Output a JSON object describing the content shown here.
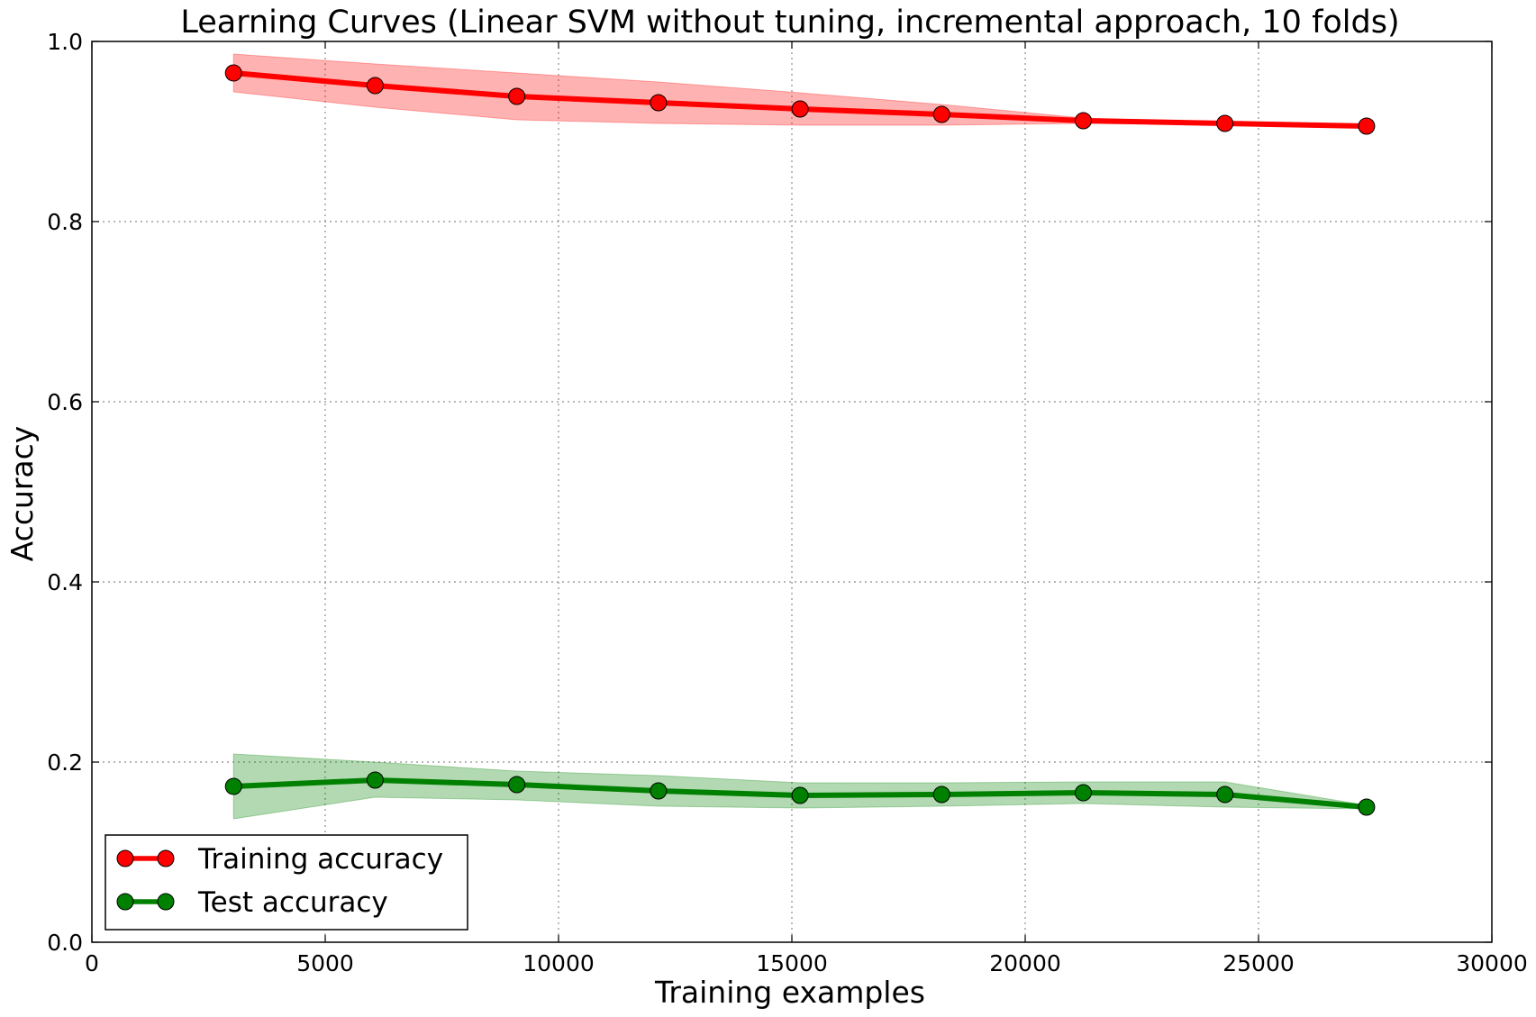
{
  "chart_data": {
    "type": "line",
    "title": "Learning Curves (Linear SVM without tuning, incremental approach, 10 folds)",
    "xlabel": "Training examples",
    "ylabel": "Accuracy",
    "xlim": [
      0,
      30000
    ],
    "ylim": [
      0.0,
      1.0
    ],
    "xticks": [
      0,
      5000,
      10000,
      15000,
      20000,
      25000,
      30000
    ],
    "xtick_labels": [
      "0",
      "5000",
      "10000",
      "15000",
      "20000",
      "25000",
      "30000"
    ],
    "yticks": [
      0.0,
      0.2,
      0.4,
      0.6,
      0.8,
      1.0
    ],
    "ytick_labels": [
      "0.0",
      "0.2",
      "0.4",
      "0.6",
      "0.8",
      "1.0"
    ],
    "grid": true,
    "legend_position": "lower-left",
    "x": [
      3035,
      6070,
      9105,
      12140,
      15175,
      18210,
      21245,
      24280,
      27315
    ],
    "series": [
      {
        "name": "Training accuracy",
        "color": "#ff0000",
        "values": [
          0.965,
          0.951,
          0.939,
          0.932,
          0.925,
          0.919,
          0.912,
          0.909,
          0.906
        ],
        "upper": [
          0.986,
          0.975,
          0.965,
          0.955,
          0.943,
          0.93,
          0.915,
          0.91,
          0.907
        ],
        "lower": [
          0.944,
          0.927,
          0.913,
          0.909,
          0.907,
          0.907,
          0.909,
          0.908,
          0.905
        ]
      },
      {
        "name": "Test accuracy",
        "color": "#008000",
        "values": [
          0.173,
          0.18,
          0.175,
          0.168,
          0.163,
          0.164,
          0.166,
          0.164,
          0.15
        ],
        "upper": [
          0.209,
          0.2,
          0.19,
          0.185,
          0.177,
          0.177,
          0.178,
          0.178,
          0.152
        ],
        "lower": [
          0.137,
          0.161,
          0.158,
          0.151,
          0.149,
          0.151,
          0.154,
          0.15,
          0.148
        ]
      }
    ]
  }
}
